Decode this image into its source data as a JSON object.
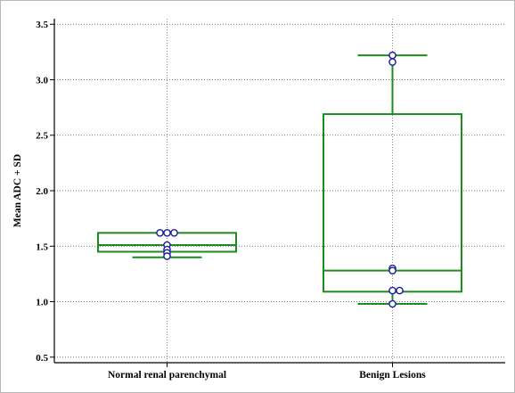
{
  "chart_data": {
    "type": "box",
    "title": "",
    "xlabel": "",
    "ylabel": "Mean ADC + SD",
    "ylim": [
      0.45,
      3.55
    ],
    "yticks": [
      0.5,
      1.0,
      1.5,
      2.0,
      2.5,
      3.0,
      3.5
    ],
    "ytick_labels": [
      "0.5",
      "1.0",
      "1.5",
      "2.0",
      "2.5",
      "3.0",
      "3.5"
    ],
    "grid": true,
    "legend": "none",
    "colors": {
      "box": "#1f8b1f",
      "marker": "#1c1c9e",
      "grid": "#555555",
      "axis": "#000000"
    },
    "categories": [
      "Normal renal parenchymal",
      "Benign Lesions"
    ],
    "boxes": [
      {
        "category": "Normal renal parenchymal",
        "whisker_low": 1.4,
        "q1": 1.45,
        "median": 1.51,
        "q3": 1.62,
        "whisker_high": 1.62,
        "points": [
          1.62,
          1.62,
          1.62,
          1.51,
          1.47,
          1.44,
          1.41
        ]
      },
      {
        "category": "Benign Lesions",
        "whisker_low": 0.98,
        "q1": 1.09,
        "median": 1.28,
        "q3": 2.69,
        "whisker_high": 3.22,
        "points": [
          3.22,
          3.16,
          1.3,
          1.28,
          1.1,
          1.1,
          0.98
        ]
      }
    ]
  }
}
